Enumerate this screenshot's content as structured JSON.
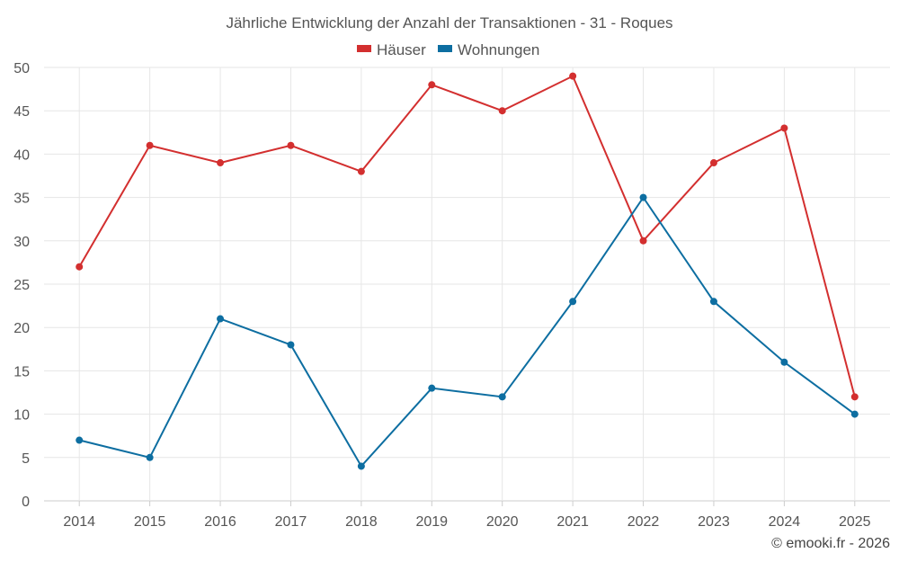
{
  "chart_data": {
    "type": "line",
    "title": "Jährliche Entwicklung der Anzahl der Transaktionen - 31 - Roques",
    "categories": [
      "2014",
      "2015",
      "2016",
      "2017",
      "2018",
      "2019",
      "2020",
      "2021",
      "2022",
      "2023",
      "2024",
      "2025"
    ],
    "series": [
      {
        "name": "Häuser",
        "color": "#d32f2f",
        "values": [
          27,
          41,
          39,
          41,
          38,
          48,
          45,
          49,
          30,
          39,
          43,
          12
        ]
      },
      {
        "name": "Wohnungen",
        "color": "#0d6ea1",
        "values": [
          7,
          5,
          21,
          18,
          4,
          13,
          12,
          23,
          35,
          23,
          16,
          10
        ]
      }
    ],
    "ylim": [
      0,
      50
    ],
    "yticks": [
      0,
      5,
      10,
      15,
      20,
      25,
      30,
      35,
      40,
      45,
      50
    ],
    "xlabel": "",
    "ylabel": "",
    "legend": "top-center",
    "grid": true
  },
  "credit": "© emooki.fr - 2026"
}
